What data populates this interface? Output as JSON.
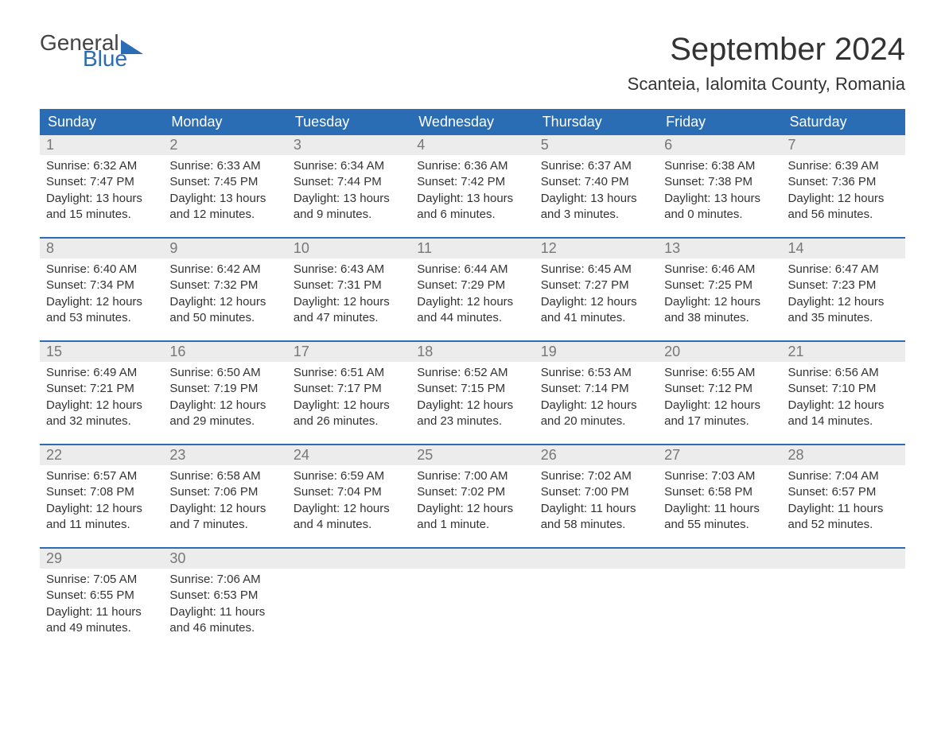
{
  "logo": {
    "text1": "General",
    "text2": "Blue"
  },
  "title": "September 2024",
  "location": "Scanteia, Ialomita County, Romania",
  "colors": {
    "header_bg": "#2a6db5",
    "header_text": "#ffffff",
    "daynum_bg": "#ececec",
    "daynum_text": "#777777",
    "body_text": "#333333",
    "week_border": "#2a6db5",
    "page_bg": "#ffffff"
  },
  "fonts": {
    "title_size_pt": 30,
    "location_size_pt": 17,
    "weekday_size_pt": 14,
    "daynum_size_pt": 14,
    "body_size_pt": 11
  },
  "weekdays": [
    "Sunday",
    "Monday",
    "Tuesday",
    "Wednesday",
    "Thursday",
    "Friday",
    "Saturday"
  ],
  "weeks": [
    [
      {
        "n": "1",
        "sunrise": "Sunrise: 6:32 AM",
        "sunset": "Sunset: 7:47 PM",
        "dl1": "Daylight: 13 hours",
        "dl2": "and 15 minutes."
      },
      {
        "n": "2",
        "sunrise": "Sunrise: 6:33 AM",
        "sunset": "Sunset: 7:45 PM",
        "dl1": "Daylight: 13 hours",
        "dl2": "and 12 minutes."
      },
      {
        "n": "3",
        "sunrise": "Sunrise: 6:34 AM",
        "sunset": "Sunset: 7:44 PM",
        "dl1": "Daylight: 13 hours",
        "dl2": "and 9 minutes."
      },
      {
        "n": "4",
        "sunrise": "Sunrise: 6:36 AM",
        "sunset": "Sunset: 7:42 PM",
        "dl1": "Daylight: 13 hours",
        "dl2": "and 6 minutes."
      },
      {
        "n": "5",
        "sunrise": "Sunrise: 6:37 AM",
        "sunset": "Sunset: 7:40 PM",
        "dl1": "Daylight: 13 hours",
        "dl2": "and 3 minutes."
      },
      {
        "n": "6",
        "sunrise": "Sunrise: 6:38 AM",
        "sunset": "Sunset: 7:38 PM",
        "dl1": "Daylight: 13 hours",
        "dl2": "and 0 minutes."
      },
      {
        "n": "7",
        "sunrise": "Sunrise: 6:39 AM",
        "sunset": "Sunset: 7:36 PM",
        "dl1": "Daylight: 12 hours",
        "dl2": "and 56 minutes."
      }
    ],
    [
      {
        "n": "8",
        "sunrise": "Sunrise: 6:40 AM",
        "sunset": "Sunset: 7:34 PM",
        "dl1": "Daylight: 12 hours",
        "dl2": "and 53 minutes."
      },
      {
        "n": "9",
        "sunrise": "Sunrise: 6:42 AM",
        "sunset": "Sunset: 7:32 PM",
        "dl1": "Daylight: 12 hours",
        "dl2": "and 50 minutes."
      },
      {
        "n": "10",
        "sunrise": "Sunrise: 6:43 AM",
        "sunset": "Sunset: 7:31 PM",
        "dl1": "Daylight: 12 hours",
        "dl2": "and 47 minutes."
      },
      {
        "n": "11",
        "sunrise": "Sunrise: 6:44 AM",
        "sunset": "Sunset: 7:29 PM",
        "dl1": "Daylight: 12 hours",
        "dl2": "and 44 minutes."
      },
      {
        "n": "12",
        "sunrise": "Sunrise: 6:45 AM",
        "sunset": "Sunset: 7:27 PM",
        "dl1": "Daylight: 12 hours",
        "dl2": "and 41 minutes."
      },
      {
        "n": "13",
        "sunrise": "Sunrise: 6:46 AM",
        "sunset": "Sunset: 7:25 PM",
        "dl1": "Daylight: 12 hours",
        "dl2": "and 38 minutes."
      },
      {
        "n": "14",
        "sunrise": "Sunrise: 6:47 AM",
        "sunset": "Sunset: 7:23 PM",
        "dl1": "Daylight: 12 hours",
        "dl2": "and 35 minutes."
      }
    ],
    [
      {
        "n": "15",
        "sunrise": "Sunrise: 6:49 AM",
        "sunset": "Sunset: 7:21 PM",
        "dl1": "Daylight: 12 hours",
        "dl2": "and 32 minutes."
      },
      {
        "n": "16",
        "sunrise": "Sunrise: 6:50 AM",
        "sunset": "Sunset: 7:19 PM",
        "dl1": "Daylight: 12 hours",
        "dl2": "and 29 minutes."
      },
      {
        "n": "17",
        "sunrise": "Sunrise: 6:51 AM",
        "sunset": "Sunset: 7:17 PM",
        "dl1": "Daylight: 12 hours",
        "dl2": "and 26 minutes."
      },
      {
        "n": "18",
        "sunrise": "Sunrise: 6:52 AM",
        "sunset": "Sunset: 7:15 PM",
        "dl1": "Daylight: 12 hours",
        "dl2": "and 23 minutes."
      },
      {
        "n": "19",
        "sunrise": "Sunrise: 6:53 AM",
        "sunset": "Sunset: 7:14 PM",
        "dl1": "Daylight: 12 hours",
        "dl2": "and 20 minutes."
      },
      {
        "n": "20",
        "sunrise": "Sunrise: 6:55 AM",
        "sunset": "Sunset: 7:12 PM",
        "dl1": "Daylight: 12 hours",
        "dl2": "and 17 minutes."
      },
      {
        "n": "21",
        "sunrise": "Sunrise: 6:56 AM",
        "sunset": "Sunset: 7:10 PM",
        "dl1": "Daylight: 12 hours",
        "dl2": "and 14 minutes."
      }
    ],
    [
      {
        "n": "22",
        "sunrise": "Sunrise: 6:57 AM",
        "sunset": "Sunset: 7:08 PM",
        "dl1": "Daylight: 12 hours",
        "dl2": "and 11 minutes."
      },
      {
        "n": "23",
        "sunrise": "Sunrise: 6:58 AM",
        "sunset": "Sunset: 7:06 PM",
        "dl1": "Daylight: 12 hours",
        "dl2": "and 7 minutes."
      },
      {
        "n": "24",
        "sunrise": "Sunrise: 6:59 AM",
        "sunset": "Sunset: 7:04 PM",
        "dl1": "Daylight: 12 hours",
        "dl2": "and 4 minutes."
      },
      {
        "n": "25",
        "sunrise": "Sunrise: 7:00 AM",
        "sunset": "Sunset: 7:02 PM",
        "dl1": "Daylight: 12 hours",
        "dl2": "and 1 minute."
      },
      {
        "n": "26",
        "sunrise": "Sunrise: 7:02 AM",
        "sunset": "Sunset: 7:00 PM",
        "dl1": "Daylight: 11 hours",
        "dl2": "and 58 minutes."
      },
      {
        "n": "27",
        "sunrise": "Sunrise: 7:03 AM",
        "sunset": "Sunset: 6:58 PM",
        "dl1": "Daylight: 11 hours",
        "dl2": "and 55 minutes."
      },
      {
        "n": "28",
        "sunrise": "Sunrise: 7:04 AM",
        "sunset": "Sunset: 6:57 PM",
        "dl1": "Daylight: 11 hours",
        "dl2": "and 52 minutes."
      }
    ],
    [
      {
        "n": "29",
        "sunrise": "Sunrise: 7:05 AM",
        "sunset": "Sunset: 6:55 PM",
        "dl1": "Daylight: 11 hours",
        "dl2": "and 49 minutes."
      },
      {
        "n": "30",
        "sunrise": "Sunrise: 7:06 AM",
        "sunset": "Sunset: 6:53 PM",
        "dl1": "Daylight: 11 hours",
        "dl2": "and 46 minutes."
      },
      {
        "empty": true
      },
      {
        "empty": true
      },
      {
        "empty": true
      },
      {
        "empty": true
      },
      {
        "empty": true
      }
    ]
  ]
}
